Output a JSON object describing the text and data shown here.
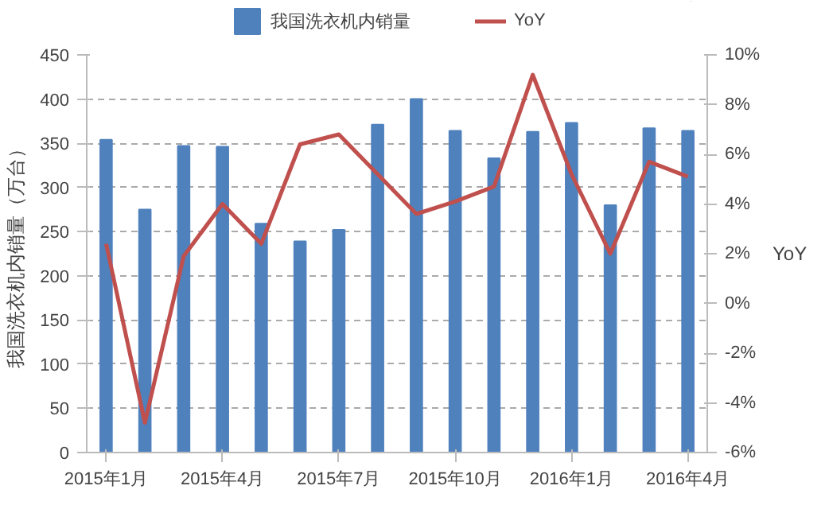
{
  "chart_data": {
    "type": "bar",
    "categories": [
      "2015年1月",
      null,
      null,
      "2015年4月",
      null,
      null,
      "2015年7月",
      null,
      null,
      "2015年10月",
      null,
      null,
      "2016年1月",
      null,
      null,
      "2016年4月"
    ],
    "series": [
      {
        "name": "我国洗衣机内销量",
        "color": "#4f81bd",
        "values": [
          354,
          275,
          347,
          346,
          259,
          239,
          252,
          371,
          400,
          364,
          333,
          363,
          373,
          280,
          367,
          364
        ]
      },
      {
        "name": "YoY",
        "type": "line",
        "axis": "y2",
        "color": "#c0504d",
        "values": [
          2.4,
          -4.8,
          1.9,
          4.0,
          2.4,
          6.4,
          6.8,
          5.2,
          3.6,
          4.1,
          4.7,
          9.2,
          5.2,
          2.0,
          5.7,
          5.1
        ]
      }
    ],
    "ylabel": "我国洗衣机内销量（万台）",
    "y2label": "YoY",
    "ylim": [
      0,
      450
    ],
    "yticks": [
      0,
      50,
      100,
      150,
      200,
      250,
      300,
      350,
      400,
      450
    ],
    "y2lim": [
      -6,
      10
    ],
    "y2ticks": [
      {
        "value": -6,
        "label": "-6%"
      },
      {
        "value": -4,
        "label": "-4%"
      },
      {
        "value": -2,
        "label": "-2%"
      },
      {
        "value": 0,
        "label": "0%"
      },
      {
        "value": 2,
        "label": "2%"
      },
      {
        "value": 4,
        "label": "4%"
      },
      {
        "value": 6,
        "label": "6%"
      },
      {
        "value": 8,
        "label": "8%"
      },
      {
        "value": 10,
        "label": "10%"
      }
    ],
    "grid": "y",
    "legend": "top"
  }
}
